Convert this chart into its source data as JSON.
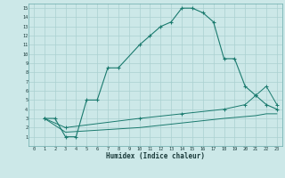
{
  "xlabel": "Humidex (Indice chaleur)",
  "line_color": "#1a7a6e",
  "bg_color": "#cce8e8",
  "grid_color": "#aad0d0",
  "curve1_x": [
    1,
    2,
    3,
    4,
    5,
    6,
    7,
    8,
    10,
    11,
    12,
    13,
    14,
    15,
    16,
    17,
    18,
    19,
    20,
    21,
    22,
    23
  ],
  "curve1_y": [
    3.0,
    3.0,
    1.0,
    1.0,
    5.0,
    5.0,
    8.5,
    8.5,
    11.0,
    12.0,
    13.0,
    13.5,
    15.0,
    15.0,
    14.5,
    13.5,
    9.5,
    9.5,
    6.5,
    5.5,
    4.5,
    4.0
  ],
  "curve2_x": [
    1,
    3,
    10,
    14,
    18,
    20,
    21,
    22,
    23
  ],
  "curve2_y": [
    3.0,
    2.0,
    3.0,
    3.5,
    4.0,
    4.5,
    5.5,
    6.5,
    4.5
  ],
  "curve3_x": [
    1,
    3,
    10,
    14,
    18,
    20,
    21,
    22,
    23
  ],
  "curve3_y": [
    3.0,
    1.5,
    2.0,
    2.5,
    3.0,
    3.2,
    3.3,
    3.5,
    3.5
  ],
  "xlim": [
    -0.5,
    23.5
  ],
  "ylim": [
    0,
    15.5
  ],
  "xticks": [
    0,
    1,
    2,
    3,
    4,
    5,
    6,
    7,
    8,
    9,
    10,
    11,
    12,
    13,
    14,
    15,
    16,
    17,
    18,
    19,
    20,
    21,
    22,
    23
  ],
  "yticks": [
    1,
    2,
    3,
    4,
    5,
    6,
    7,
    8,
    9,
    10,
    11,
    12,
    13,
    14,
    15
  ]
}
